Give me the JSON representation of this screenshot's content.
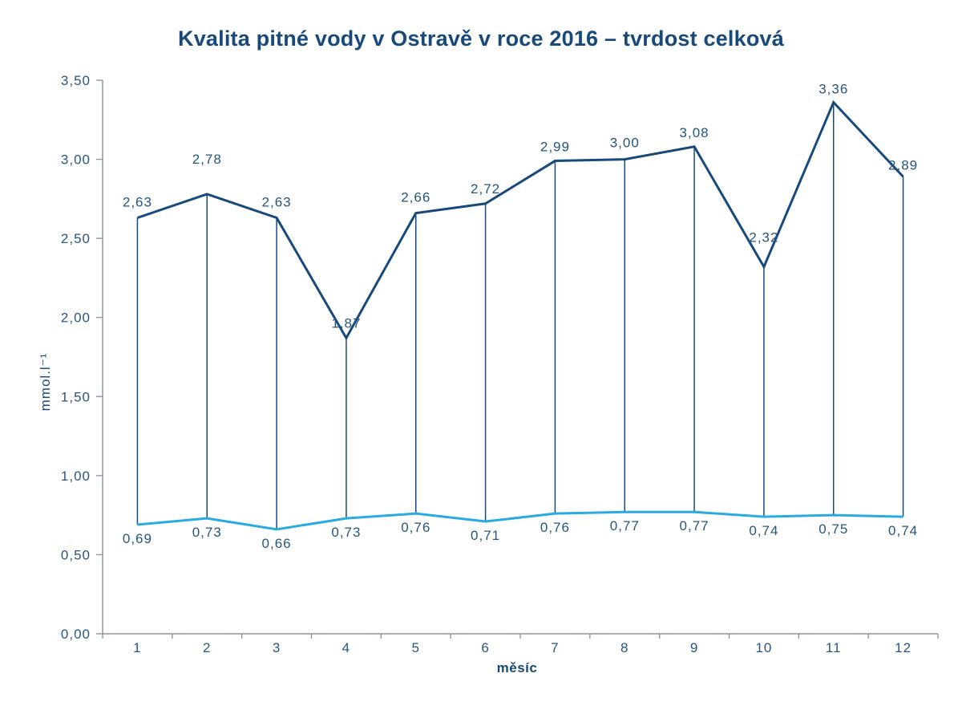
{
  "page": {
    "background": "#ffffff"
  },
  "chart_data": {
    "type": "line",
    "title": "Kvalita pitné vody v Ostravě v roce 2016 – tvrdost celková",
    "xlabel": "měsíc",
    "ylabel": "mmol.l⁻¹",
    "categories": [
      "1",
      "2",
      "3",
      "4",
      "5",
      "6",
      "7",
      "8",
      "9",
      "10",
      "11",
      "12"
    ],
    "ylim": [
      0,
      3.5
    ],
    "ytick_step": 0.5,
    "ytick_labels": [
      "0,00",
      "0,50",
      "1,00",
      "1,50",
      "2,00",
      "2,50",
      "3,00",
      "3,50"
    ],
    "grid": false,
    "legend": "none",
    "drop_lines": true,
    "decimal_style": "comma",
    "series": [
      {
        "id": "upper",
        "name": "",
        "color": "#17497a",
        "line_width": 3,
        "values": [
          2.63,
          2.78,
          2.63,
          1.87,
          2.66,
          2.72,
          2.99,
          3.0,
          3.08,
          2.32,
          3.36,
          2.89
        ],
        "labels": [
          "2,63",
          "2,78",
          "2,63",
          "1,87",
          "2,66",
          "2,72",
          "2,99",
          "3,00",
          "3,08",
          "2,32",
          "3,36",
          "2,89"
        ],
        "label_position": "above",
        "label_dy": [
          14,
          38,
          14,
          13,
          14,
          13,
          12,
          15,
          12,
          31,
          11,
          9
        ]
      },
      {
        "id": "lower",
        "name": "",
        "color": "#29abe2",
        "line_width": 3,
        "values": [
          0.69,
          0.73,
          0.66,
          0.73,
          0.76,
          0.71,
          0.76,
          0.77,
          0.77,
          0.74,
          0.75,
          0.74
        ],
        "labels": [
          "0,69",
          "0,73",
          "0,66",
          "0,73",
          "0,76",
          "0,71",
          "0,76",
          "0,77",
          "0,77",
          "0,74",
          "0,75",
          "0,74"
        ],
        "label_position": "below",
        "label_dy": [
          23,
          23,
          23,
          23,
          23,
          23,
          23,
          23,
          23,
          23,
          23,
          23
        ]
      }
    ],
    "colors": {
      "title": "#17497a",
      "axis": "#8b96a3",
      "tick_label": "#2a5580",
      "data_label": "#25557f",
      "axis_title": "#17497a",
      "drop_line": "#17497a"
    }
  }
}
